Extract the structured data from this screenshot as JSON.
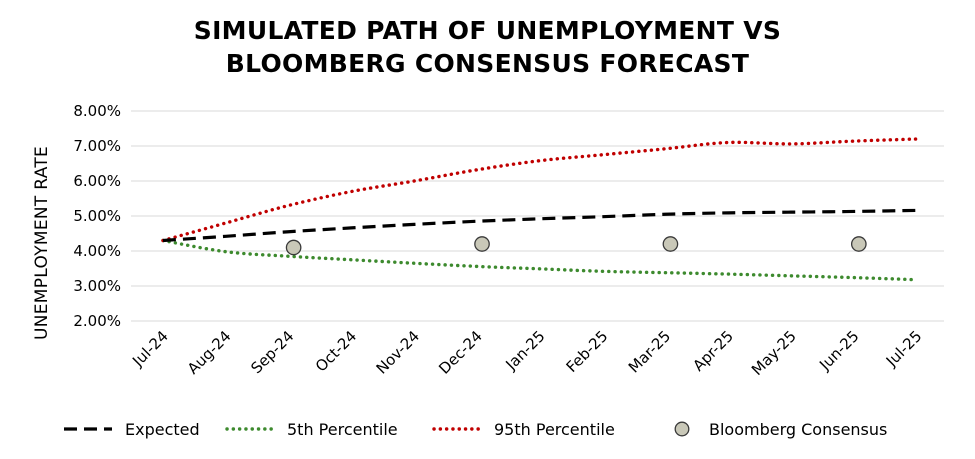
{
  "chart_data": {
    "type": "line",
    "title_lines": [
      "SIMULATED PATH OF UNEMPLOYMENT VS",
      "BLOOMBERG CONSENSUS FORECAST"
    ],
    "ylabel": "UNEMPLOYMENT RATE",
    "xlabel": "",
    "ylim": [
      2.0,
      8.0
    ],
    "yticks": [
      "2.00%",
      "3.00%",
      "4.00%",
      "5.00%",
      "6.00%",
      "7.00%",
      "8.00%"
    ],
    "categories": [
      "Jul-24",
      "Aug-24",
      "Sep-24",
      "Oct-24",
      "Nov-24",
      "Dec-24",
      "Jan-25",
      "Feb-25",
      "Mar-25",
      "Apr-25",
      "May-25",
      "Jun-25",
      "Jul-25"
    ],
    "grid": true,
    "legend_position": "bottom",
    "series": [
      {
        "name": "Expected",
        "style": "dashed",
        "color": "#000000",
        "x": [
          0,
          1,
          2,
          3,
          4,
          5,
          6,
          7,
          8,
          9,
          10,
          11,
          12
        ],
        "values": [
          4.3,
          4.42,
          4.55,
          4.66,
          4.76,
          4.85,
          4.92,
          4.98,
          5.05,
          5.09,
          5.11,
          5.13,
          5.16
        ]
      },
      {
        "name": "5th Percentile",
        "style": "dotted",
        "color": "#3d8a2e",
        "x": [
          0,
          1,
          2,
          3,
          4,
          5,
          6,
          7,
          8,
          9,
          10,
          11,
          12
        ],
        "values": [
          4.3,
          3.98,
          3.85,
          3.75,
          3.65,
          3.56,
          3.49,
          3.42,
          3.38,
          3.34,
          3.29,
          3.24,
          3.18
        ]
      },
      {
        "name": "95th Percentile",
        "style": "dotted",
        "color": "#c00000",
        "x": [
          0,
          1,
          2,
          3,
          4,
          5,
          6,
          7,
          8,
          9,
          10,
          11,
          12
        ],
        "values": [
          4.3,
          4.8,
          5.3,
          5.7,
          6.0,
          6.32,
          6.58,
          6.75,
          6.92,
          7.1,
          7.06,
          7.14,
          7.2
        ]
      },
      {
        "name": "Bloomberg Consensus",
        "style": "marker",
        "color": "#c9c8b8",
        "x": [
          2.08,
          5.08,
          8.08,
          11.08
        ],
        "values": [
          4.1,
          4.2,
          4.2,
          4.2
        ]
      }
    ]
  }
}
